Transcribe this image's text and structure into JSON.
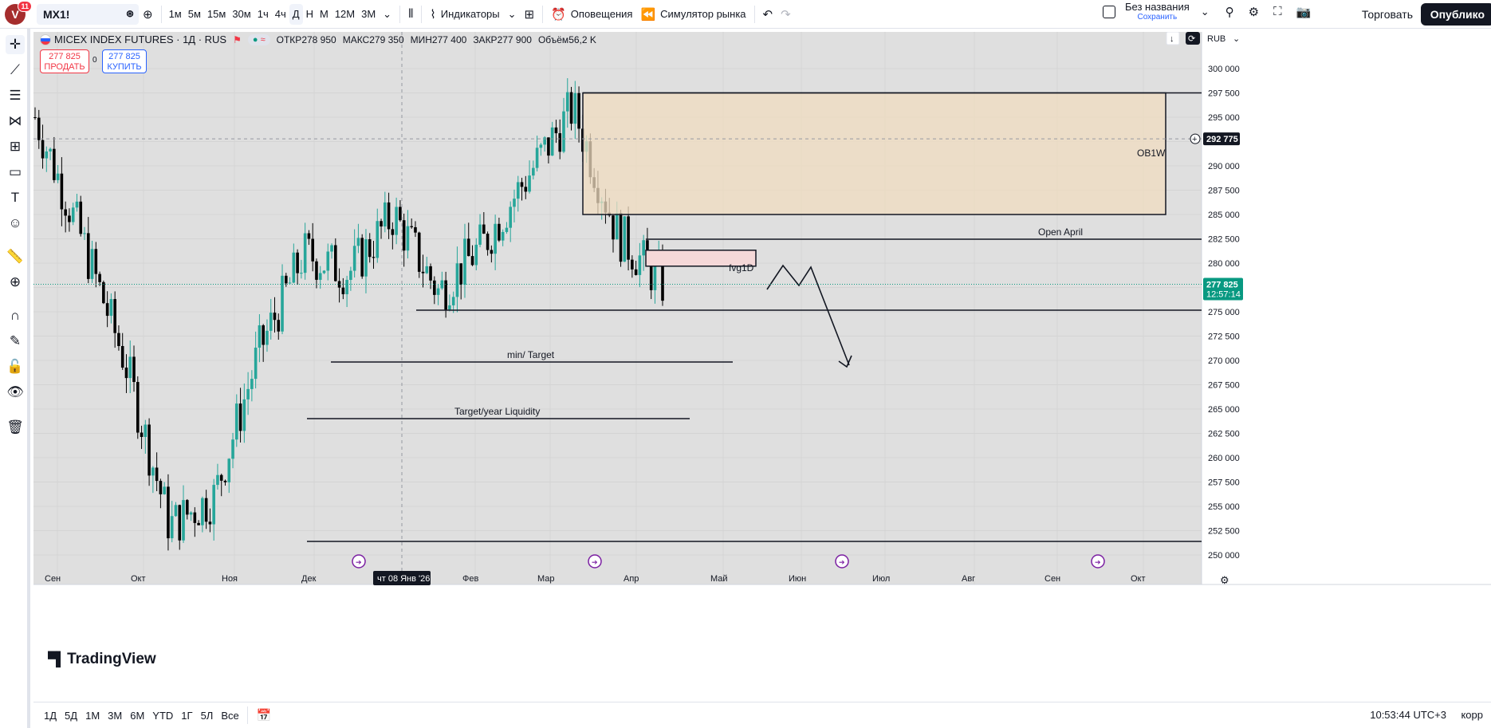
{
  "topbar": {
    "avatar_letter": "V",
    "avatar_badge": "11",
    "symbol": "MX1!",
    "timeframes": [
      "1м",
      "5м",
      "15м",
      "30м",
      "1ч",
      "4ч",
      "Д",
      "Н",
      "М",
      "12М",
      "3М"
    ],
    "active_timeframe": "Д",
    "indicators_label": "Индикаторы",
    "alerts_label": "Оповещения",
    "replay_label": "Симулятор рынка",
    "layout_name": "Без названия",
    "layout_save": "Сохранить",
    "trade_label": "Торговать",
    "publish_label": "Опублико"
  },
  "legend": {
    "title": "MICEX INDEX FUTURES · 1Д · RUS",
    "open_label": "ОТКР",
    "open": "278 950",
    "high_label": "МАКС",
    "high": "279 350",
    "low_label": "МИН",
    "low": "277 400",
    "close_label": "ЗАКР",
    "close": "277 900",
    "volume_label": "Объём",
    "volume": "56,2 K",
    "sell_price": "277 825",
    "sell_label": "ПРОДАТЬ",
    "spread": "0",
    "buy_price": "277 825",
    "buy_label": "КУПИТЬ"
  },
  "scale": {
    "currency": "RUB",
    "crosshair_price": "292 775",
    "last_price": "277 825",
    "countdown": "12:57:14"
  },
  "chart_data": {
    "type": "candlestick",
    "title": "MICEX INDEX FUTURES · 1Д · RUS",
    "ylim": [
      250000,
      302000
    ],
    "y_ticks": [
      250000,
      252500,
      255000,
      257500,
      260000,
      262500,
      265000,
      267500,
      270000,
      272500,
      275000,
      277500,
      280000,
      282500,
      285000,
      287500,
      290000,
      292500,
      295000,
      297500,
      300000
    ],
    "y_tick_labels": [
      "250 000",
      "252 500",
      "255 000",
      "257 500",
      "260 000",
      "262 500",
      "265 000",
      "267 500",
      "270 000",
      "272 500",
      "275 000",
      "277 500",
      "280 000",
      "282 500",
      "285 000",
      "287 500",
      "290 000",
      "292 500",
      "295 000",
      "297 500",
      "300 000"
    ],
    "x_labels": [
      "Сен",
      "Окт",
      "Ноя",
      "Дек",
      "Фев",
      "Мар",
      "Апр",
      "Май",
      "Июн",
      "Июл",
      "Авг",
      "Сен",
      "Окт"
    ],
    "crosshair_date_label": "чт 08 Янв '26",
    "close_path_key_points": [
      {
        "month": "Сен start",
        "close": 295000
      },
      {
        "month": "Сен end",
        "close": 283000
      },
      {
        "month": "Окт mid",
        "close": 270000
      },
      {
        "month": "Ноя start",
        "close": 253000
      },
      {
        "month": "Ноя end",
        "close": 256000
      },
      {
        "month": "Дек start",
        "close": 271000
      },
      {
        "month": "Дек end",
        "close": 281000
      },
      {
        "month": "Янв",
        "close": 279000
      },
      {
        "month": "Фев",
        "close": 285000
      },
      {
        "month": "Фев end",
        "close": 277000
      },
      {
        "month": "Мар",
        "close": 282000
      },
      {
        "month": "Мар mid",
        "close": 289000
      },
      {
        "month": "Мар end",
        "close": 296000
      },
      {
        "month": "Апр start",
        "close": 283000
      },
      {
        "month": "Апр current",
        "close": 277825
      }
    ],
    "annotations": [
      {
        "type": "zone",
        "label": "OB1W",
        "y_from": 285000,
        "y_to": 297500
      },
      {
        "type": "zone",
        "label": "fvg1D",
        "y_from": 279500,
        "y_to": 281000
      },
      {
        "type": "hline",
        "label": "Open April",
        "y": 282500
      },
      {
        "type": "hline",
        "label": "",
        "y": 275000
      },
      {
        "type": "hline",
        "label": "min/ Target",
        "y": 269800
      },
      {
        "type": "hline",
        "label": "Target/year Liquidity",
        "y": 264000
      },
      {
        "type": "hline",
        "label": "",
        "y": 251000
      }
    ],
    "last_price": 277825,
    "crosshair_price": 292775
  },
  "bottombar": {
    "ranges": [
      "1Д",
      "5Д",
      "1М",
      "3М",
      "6М",
      "YTD",
      "1Г",
      "5Л",
      "Все"
    ],
    "clock": "10:53:44 UTC+3",
    "adjust": "корр"
  },
  "watermark": "TradingView",
  "colors": {
    "up": "#26a69a",
    "down": "#000000",
    "background": "#dfdfdf",
    "zone_ob": "#f0dcc0",
    "zone_fvg": "#f5d8d8",
    "last_price": "#089981"
  }
}
